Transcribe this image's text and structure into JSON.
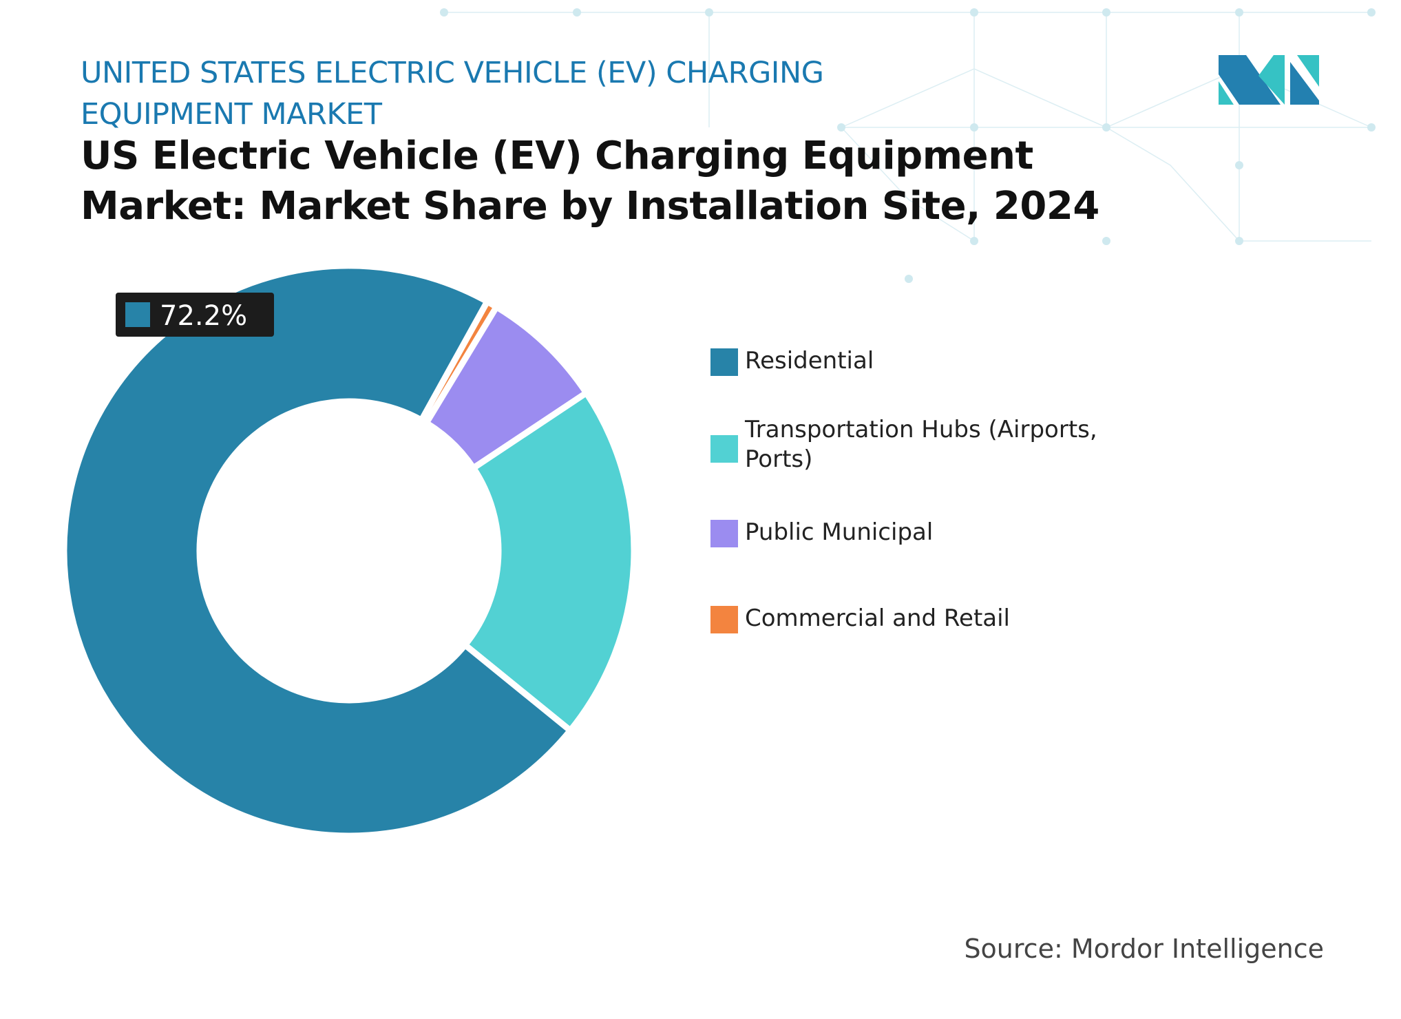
{
  "header": {
    "kicker": "UNITED STATES ELECTRIC VEHICLE (EV) CHARGING EQUIPMENT MARKET",
    "title": "US Electric Vehicle (EV) Charging Equipment Market: Market Share by Installation Site, 2024"
  },
  "logo": {
    "text": "Mordor Intelligence",
    "colors": [
      "#2380b0",
      "#36c2c4"
    ]
  },
  "chart_data": {
    "type": "pie",
    "donut": true,
    "title": "US Electric Vehicle (EV) Charging Equipment Market: Market Share by Installation Site, 2024",
    "categories": [
      "Residential",
      "Transportation Hubs (Airports, Ports)",
      "Public Municipal",
      "Commercial and Retail"
    ],
    "values": [
      72.2,
      20.2,
      7.0,
      0.6
    ],
    "unit": "%",
    "colors": [
      "#2783a8",
      "#52d1d3",
      "#9b8cf0",
      "#f3843f"
    ],
    "data_labels": [
      {
        "category": "Residential",
        "text": "72.2%"
      }
    ],
    "legend_position": "right"
  },
  "source": "Source: Mordor Intelligence"
}
